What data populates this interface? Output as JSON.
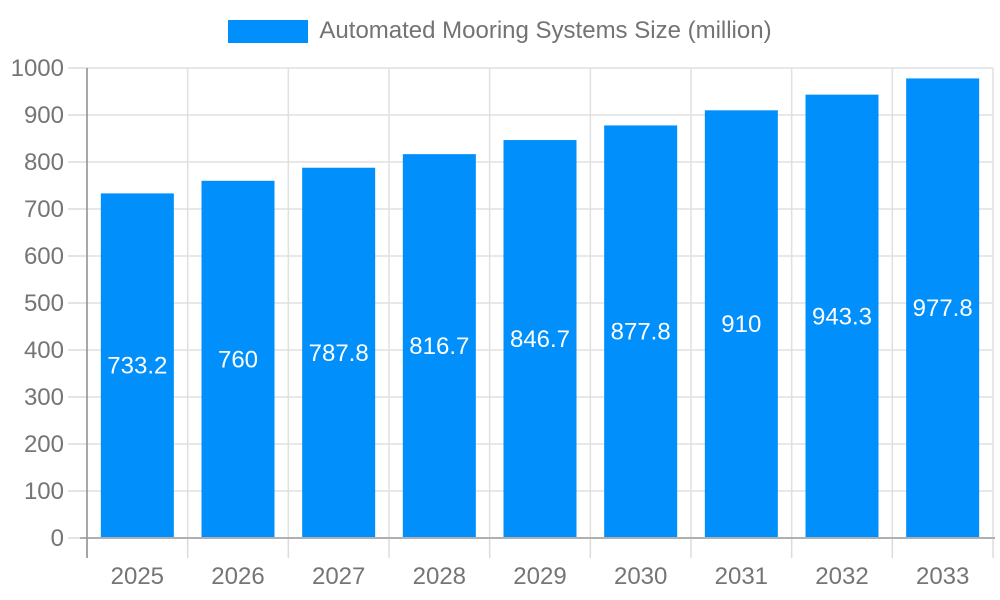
{
  "legend": {
    "label": "Automated Mooring Systems Size (million)"
  },
  "chart_data": {
    "type": "bar",
    "title": "Automated Mooring Systems Size (million)",
    "categories": [
      "2025",
      "2026",
      "2027",
      "2028",
      "2029",
      "2030",
      "2031",
      "2032",
      "2033"
    ],
    "values": [
      733.2,
      760,
      787.8,
      816.7,
      846.7,
      877.8,
      910,
      943.3,
      977.8
    ],
    "xlabel": "",
    "ylabel": "",
    "ylim": [
      0,
      1000
    ],
    "ytick_step": 100,
    "grid": true,
    "legend_position": "top",
    "colors": {
      "bar": "#008FFB",
      "value_label": "#ffffff",
      "axis_text": "#757575",
      "legend_text": "#737373",
      "grid_line": "#e0e0e0",
      "tick_line": "#dcdcdc",
      "y_axis_line": "#999999",
      "x_axis_line": "#b0b0b0"
    }
  }
}
